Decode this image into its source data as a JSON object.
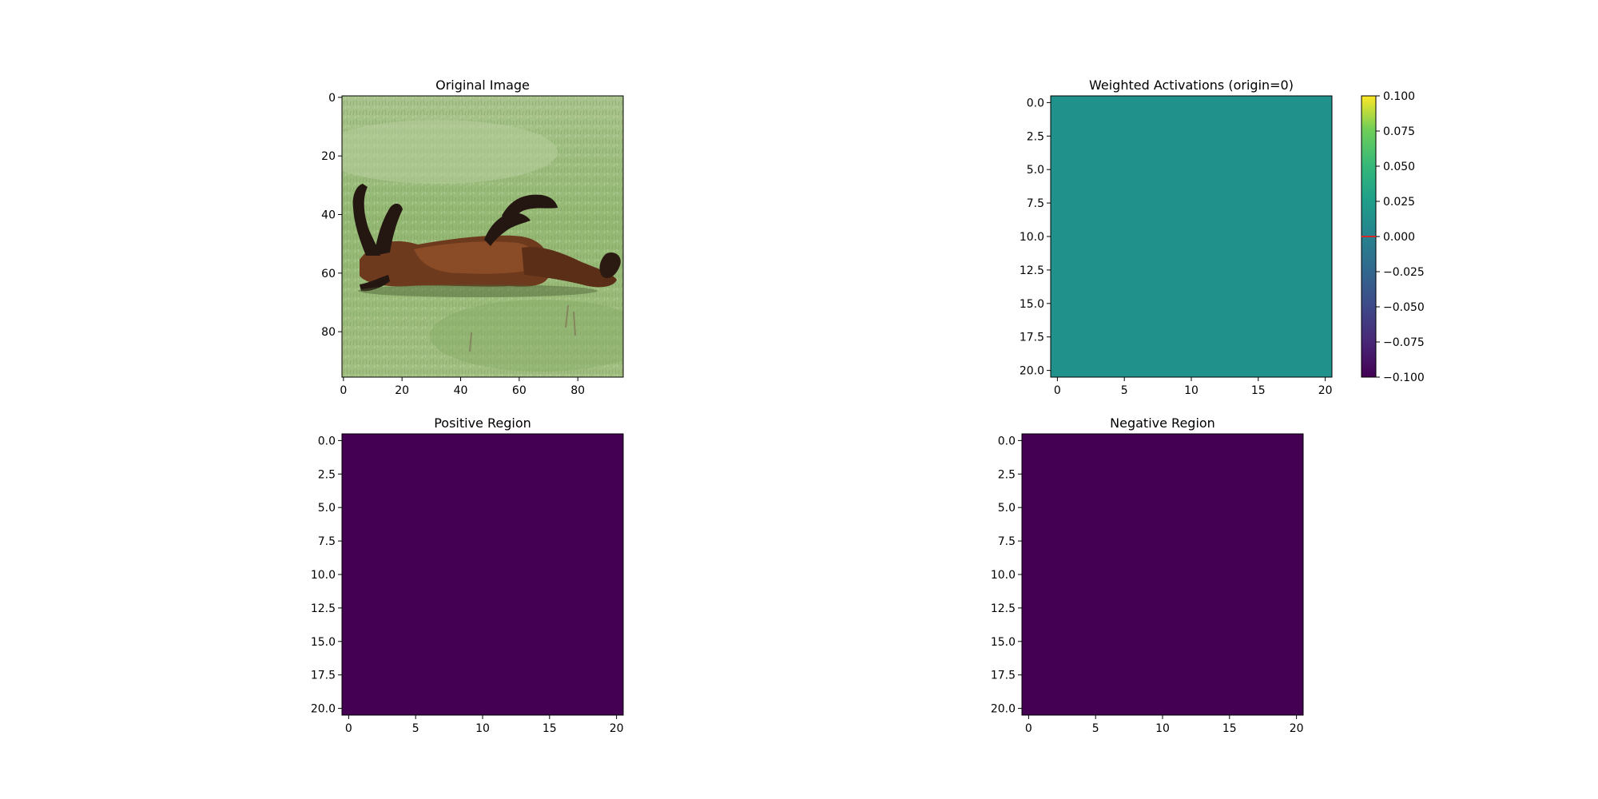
{
  "colors": {
    "viridis_min": "#440154",
    "viridis_mid": "#21918c",
    "viridis_max": "#fde725",
    "colorbar_marker": "#d62728"
  },
  "chart_data": [
    {
      "type": "image",
      "title": "Original Image",
      "content": "photo of a brown horse rolling on its back in green grass",
      "xlim": [
        -0.5,
        95.5
      ],
      "ylim": [
        95.5,
        -0.5
      ],
      "xticks": [
        0,
        20,
        40,
        60,
        80
      ],
      "yticks": [
        0,
        20,
        40,
        60,
        80
      ],
      "xtick_labels": [
        "0",
        "20",
        "40",
        "60",
        "80"
      ],
      "ytick_labels": [
        "0",
        "20",
        "40",
        "60",
        "80"
      ]
    },
    {
      "type": "heatmap",
      "title": "Weighted Activations (origin=0)",
      "grid_size": [
        21,
        21
      ],
      "constant_value": 0.0,
      "fill_color": "#21918c",
      "xlim": [
        -0.5,
        20.5
      ],
      "ylim": [
        20.5,
        -0.5
      ],
      "xticks": [
        0,
        5,
        10,
        15,
        20
      ],
      "yticks": [
        0,
        2.5,
        5,
        7.5,
        10,
        12.5,
        15,
        17.5,
        20
      ],
      "xtick_labels": [
        "0",
        "5",
        "10",
        "15",
        "20"
      ],
      "ytick_labels": [
        "0.0",
        "2.5",
        "5.0",
        "7.5",
        "10.0",
        "12.5",
        "15.0",
        "17.5",
        "20.0"
      ],
      "colorbar": {
        "colormap": "viridis",
        "range": [
          -0.1,
          0.1
        ],
        "ticks": [
          0.1,
          0.075,
          0.05,
          0.025,
          0.0,
          -0.025,
          -0.05,
          -0.075,
          -0.1
        ],
        "tick_labels": [
          "0.100",
          "0.075",
          "0.050",
          "0.025",
          "0.000",
          "−0.025",
          "−0.050",
          "−0.075",
          "−0.100"
        ],
        "marker_value": 0.0
      }
    },
    {
      "type": "heatmap",
      "title": "Positive Region",
      "grid_size": [
        21,
        21
      ],
      "constant_value": 0,
      "fill_color": "#440154",
      "xlim": [
        -0.5,
        20.5
      ],
      "ylim": [
        20.5,
        -0.5
      ],
      "xticks": [
        0,
        5,
        10,
        15,
        20
      ],
      "yticks": [
        0,
        2.5,
        5,
        7.5,
        10,
        12.5,
        15,
        17.5,
        20
      ],
      "xtick_labels": [
        "0",
        "5",
        "10",
        "15",
        "20"
      ],
      "ytick_labels": [
        "0.0",
        "2.5",
        "5.0",
        "7.5",
        "10.0",
        "12.5",
        "15.0",
        "17.5",
        "20.0"
      ]
    },
    {
      "type": "heatmap",
      "title": "Negative Region",
      "grid_size": [
        21,
        21
      ],
      "constant_value": 0,
      "fill_color": "#440154",
      "xlim": [
        -0.5,
        20.5
      ],
      "ylim": [
        20.5,
        -0.5
      ],
      "xticks": [
        0,
        5,
        10,
        15,
        20
      ],
      "yticks": [
        0,
        2.5,
        5,
        7.5,
        10,
        12.5,
        15,
        17.5,
        20
      ],
      "xtick_labels": [
        "0",
        "5",
        "10",
        "15",
        "20"
      ],
      "ytick_labels": [
        "0.0",
        "2.5",
        "5.0",
        "7.5",
        "10.0",
        "12.5",
        "15.0",
        "17.5",
        "20.0"
      ]
    }
  ]
}
